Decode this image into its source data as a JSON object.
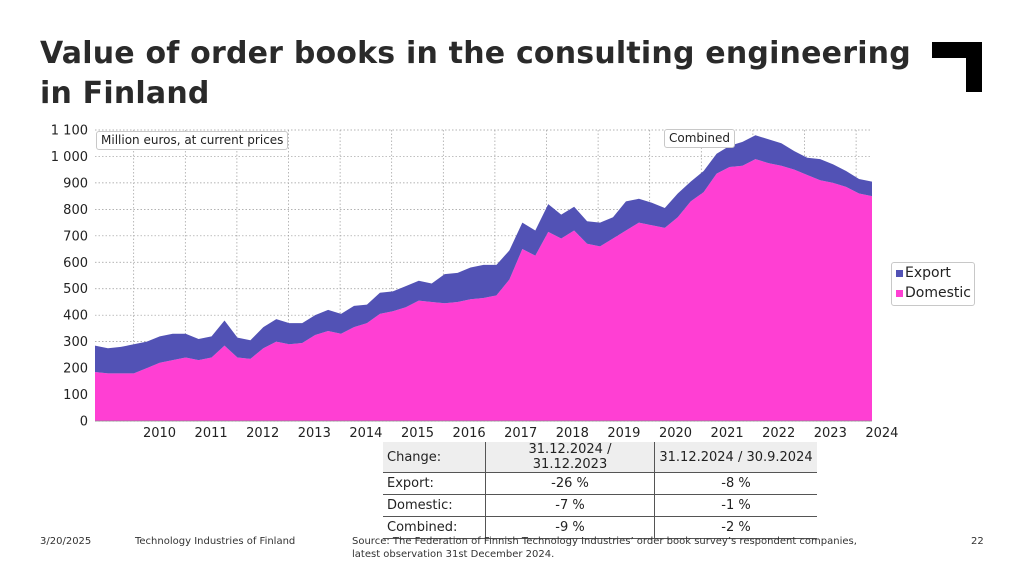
{
  "slide": {
    "title": "Value of order books in the consulting engineering in Finland",
    "date": "3/20/2025",
    "organization": "Technology Industries of Finland",
    "source": "Source: The Federation of Finnish Technology Industries’ order book survey’s respondent companies, latest observation 31st December 2024.",
    "page_number": "22"
  },
  "chart_data": {
    "type": "area",
    "stacked": true,
    "annotations": [
      "Million euros, at current prices",
      "Combined"
    ],
    "x_start": "2009-Q2",
    "x_tick_labels": [
      "2010",
      "2011",
      "2012",
      "2013",
      "2014",
      "2015",
      "2016",
      "2017",
      "2018",
      "2019",
      "2020",
      "2021",
      "2022",
      "2023",
      "2024"
    ],
    "ylim": [
      0,
      1100
    ],
    "y_ticks": [
      0,
      100,
      200,
      300,
      400,
      500,
      600,
      700,
      800,
      900,
      1000,
      1100
    ],
    "y_tick_labels": [
      "0",
      "100",
      "200",
      "300",
      "400",
      "500",
      "600",
      "700",
      "800",
      "900",
      "1 000",
      "1 100"
    ],
    "grid": true,
    "legend_position": "right",
    "series": [
      {
        "name": "Domestic",
        "color": "#ff3fd3",
        "values": [
          185,
          180,
          180,
          180,
          200,
          220,
          230,
          240,
          230,
          240,
          285,
          240,
          235,
          275,
          300,
          290,
          295,
          325,
          340,
          330,
          355,
          370,
          405,
          415,
          430,
          455,
          450,
          445,
          450,
          460,
          465,
          475,
          535,
          650,
          625,
          715,
          690,
          720,
          670,
          660,
          690,
          720,
          750,
          740,
          730,
          770,
          830,
          865,
          935,
          960,
          965,
          990,
          975,
          965,
          950,
          930,
          910,
          900,
          885,
          860,
          850
        ]
      },
      {
        "name": "Export",
        "color": "#5252b5",
        "values": [
          100,
          95,
          100,
          110,
          100,
          100,
          100,
          90,
          80,
          80,
          95,
          75,
          70,
          80,
          85,
          80,
          75,
          75,
          80,
          75,
          80,
          70,
          80,
          75,
          80,
          75,
          70,
          110,
          110,
          120,
          125,
          115,
          110,
          100,
          95,
          105,
          90,
          90,
          85,
          90,
          80,
          110,
          90,
          85,
          75,
          90,
          75,
          80,
          75,
          80,
          90,
          90,
          90,
          85,
          70,
          65,
          80,
          70,
          60,
          55,
          55
        ]
      }
    ]
  },
  "change_table": {
    "headers": [
      "Change:",
      "31.12.2024 / 31.12.2023",
      "31.12.2024 / 30.9.2024"
    ],
    "rows": [
      [
        "Export:",
        "-26 %",
        "-8 %"
      ],
      [
        "Domestic:",
        "-7 %",
        "-1 %"
      ],
      [
        "Combined:",
        "-9 %",
        "-2 %"
      ]
    ]
  }
}
